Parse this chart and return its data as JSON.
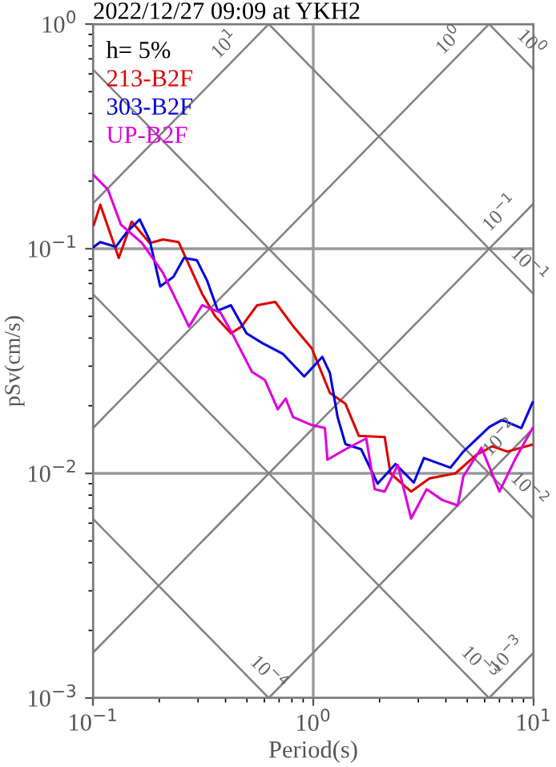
{
  "chart_data": {
    "type": "line",
    "title": "2022/12/27 09:09 at YKH2",
    "xlabel": "Period(s)",
    "ylabel": "pSv(cm/s)",
    "log": "xy",
    "grid": true,
    "legend": "top left",
    "xlim": [
      0.1,
      10
    ],
    "ylim": [
      0.001,
      1
    ],
    "xticks": [
      {
        "value": 0.1,
        "label": "10$^{−1}$"
      },
      {
        "value": 1,
        "label": "10$^{0}$"
      },
      {
        "value": 10,
        "label": "10$^{1}$"
      }
    ],
    "yticks": [
      {
        "value": 0.001,
        "label": "10$^{−3}$"
      },
      {
        "value": 0.01,
        "label": "10$^{−2}$"
      },
      {
        "value": 0.1,
        "label": "10$^{−1}$"
      },
      {
        "value": 1,
        "label": "10$^{0}$"
      }
    ],
    "series": [
      {
        "name": "213-B2F",
        "color": "#dd0000",
        "x": [
          0.101,
          0.108,
          0.131,
          0.15,
          0.181,
          0.208,
          0.245,
          0.313,
          0.359,
          0.423,
          0.472,
          0.556,
          0.672,
          0.813,
          0.985,
          1.19,
          1.4,
          1.61,
          2.11,
          2.24,
          2.78,
          3.37,
          4.42,
          5.5,
          6.5,
          7.6,
          9.8
        ],
        "values": [
          0.128,
          0.157,
          0.091,
          0.132,
          0.106,
          0.11,
          0.107,
          0.063,
          0.05,
          0.042,
          0.045,
          0.056,
          0.058,
          0.045,
          0.036,
          0.0228,
          0.0204,
          0.0147,
          0.0145,
          0.01,
          0.0083,
          0.0095,
          0.01,
          0.0121,
          0.0132,
          0.0125,
          0.0134
        ]
      },
      {
        "name": "303-B2F",
        "color": "#0000dd",
        "x": [
          0.101,
          0.108,
          0.127,
          0.142,
          0.163,
          0.181,
          0.202,
          0.232,
          0.259,
          0.296,
          0.33,
          0.369,
          0.423,
          0.498,
          0.587,
          0.729,
          0.91,
          1.1,
          1.19,
          1.29,
          1.4,
          1.65,
          1.96,
          2.36,
          2.86,
          3.18,
          4.19,
          4.8,
          6.3,
          7.2,
          8.8,
          9.9
        ],
        "values": [
          0.102,
          0.107,
          0.102,
          0.118,
          0.135,
          0.109,
          0.068,
          0.075,
          0.091,
          0.089,
          0.072,
          0.053,
          0.056,
          0.042,
          0.038,
          0.034,
          0.027,
          0.033,
          0.028,
          0.0178,
          0.0135,
          0.0128,
          0.009,
          0.011,
          0.0091,
          0.0117,
          0.0106,
          0.0125,
          0.0161,
          0.0173,
          0.0159,
          0.0207
        ]
      },
      {
        "name": "UP-B2F",
        "color": "#dd00dd",
        "x": [
          0.101,
          0.117,
          0.134,
          0.167,
          0.208,
          0.273,
          0.313,
          0.379,
          0.423,
          0.527,
          0.604,
          0.69,
          0.75,
          0.81,
          0.985,
          1.13,
          1.16,
          1.4,
          1.74,
          1.9,
          2.11,
          2.42,
          2.78,
          3.27,
          3.86,
          4.53,
          4.8,
          5.8,
          7.0,
          8.3,
          9.9
        ],
        "values": [
          0.212,
          0.183,
          0.128,
          0.106,
          0.078,
          0.045,
          0.056,
          0.052,
          0.043,
          0.0283,
          0.026,
          0.0193,
          0.0215,
          0.0178,
          0.0164,
          0.0159,
          0.0115,
          0.0128,
          0.0143,
          0.0085,
          0.0083,
          0.0109,
          0.0063,
          0.0085,
          0.0076,
          0.0072,
          0.0097,
          0.013,
          0.0083,
          0.0117,
          0.0159
        ]
      },
      {
        "type": "line",
        "color": "#808080",
        "x": [
          0.1,
          0.628
        ],
        "values": [
          0.159,
          1
        ]
      },
      {
        "type": "line",
        "color": "#808080",
        "x": [
          0.1,
          6.28
        ],
        "values": [
          0.0159,
          1
        ]
      },
      {
        "type": "line",
        "color": "#808080",
        "x": [
          0.1,
          10
        ],
        "values": [
          0.00159,
          0.159
        ]
      },
      {
        "type": "line",
        "color": "#808080",
        "x": [
          0.628,
          10
        ],
        "values": [
          0.001,
          0.0159
        ]
      },
      {
        "type": "line",
        "color": "#808080",
        "x": [
          6.28,
          10
        ],
        "values": [
          0.001,
          0.00159
        ]
      },
      {
        "type": "line",
        "color": "#808080",
        "x": [
          0.1,
          0.628
        ],
        "values": [
          0.00628,
          0.001
        ]
      },
      {
        "type": "line",
        "color": "#808080",
        "x": [
          0.1,
          6.28
        ],
        "values": [
          0.0628,
          0.001
        ]
      },
      {
        "type": "line",
        "color": "#808080",
        "x": [
          0.1,
          10
        ],
        "values": [
          0.628,
          0.00628
        ]
      },
      {
        "type": "line",
        "color": "#808080",
        "x": [
          0.628,
          10
        ],
        "values": [
          1,
          0.0628
        ]
      },
      {
        "type": "line",
        "color": "#808080",
        "x": [
          6.28,
          10
        ],
        "values": [
          1,
          0.628
        ]
      }
    ],
    "annotations": [
      "h= 5%",
      {
        "text": "10$^{1}$",
        "x": 0.45,
        "y": 0.716
      },
      {
        "text": "10$^{0}$",
        "x": 4.7,
        "y": 0.748
      },
      {
        "text": "10$^{0}$",
        "x": 8.6,
        "y": 0.73
      },
      {
        "text": "10$^{−1}$",
        "x": 8.0,
        "y": 0.127
      },
      {
        "text": "10$^{−1}$",
        "x": 8.4,
        "y": 0.0748
      },
      {
        "text": "10$^{−2}$",
        "x": 8.0,
        "y": 0.0127
      },
      {
        "text": "10$^{−2}$",
        "x": 8.4,
        "y": 0.00748
      },
      {
        "text": "10$^{−4}$",
        "x": 0.55,
        "y": 0.00114
      },
      {
        "text": "10$^{−3}$",
        "x": 5.0,
        "y": 0.00126
      },
      {
        "text": "10$^{−3}$",
        "x": 8.6,
        "y": 0.00137
      }
    ]
  }
}
